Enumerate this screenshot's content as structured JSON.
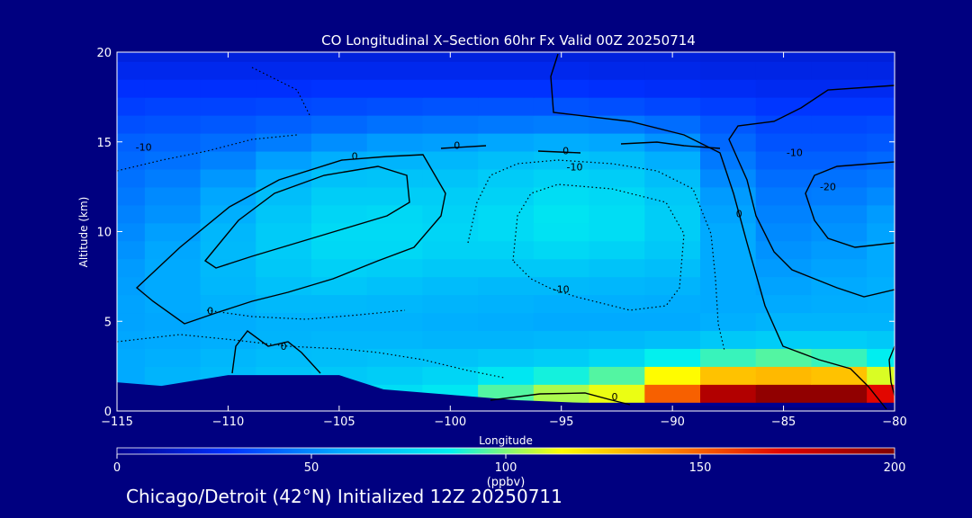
{
  "chart_data": {
    "type": "heatmap",
    "title": "CO Longitudinal X–Section 60hr  Fx Valid 00Z 20250714",
    "xlabel": "Longitude",
    "ylabel": "Altitude (km)",
    "xlim": [
      -115,
      -80
    ],
    "ylim": [
      0,
      20
    ],
    "x_ticks": [
      -115,
      -110,
      -105,
      -100,
      -95,
      -90,
      -85,
      -80
    ],
    "x_tick_labels": [
      "−115",
      "−110",
      "−105",
      "−100",
      "−95",
      "−90",
      "−85",
      "−80"
    ],
    "y_ticks": [
      0,
      5,
      10,
      15,
      20
    ],
    "y_tick_labels": [
      "0",
      "5",
      "10",
      "15",
      "20"
    ],
    "colorbar": {
      "min": 0,
      "max": 200,
      "units": "(ppbv)",
      "ticks": [
        0,
        50,
        100,
        150,
        200
      ],
      "tick_labels": [
        "0",
        "50",
        "100",
        "150",
        "200"
      ],
      "colors": [
        "#000090",
        "#0030ff",
        "#00a8ff",
        "#00f0f0",
        "#ffff00",
        "#ff8000",
        "#e00000",
        "#800000"
      ]
    },
    "lon": [
      -115,
      -112.5,
      -110,
      -107.5,
      -105,
      -102.5,
      -100,
      -97.5,
      -95,
      -92.5,
      -90,
      -87.5,
      -85,
      -82.5,
      -80
    ],
    "alt": [
      1,
      2,
      3,
      4,
      5,
      6,
      7,
      8,
      9,
      10,
      11,
      12,
      13,
      14,
      15,
      16,
      17,
      18,
      19,
      20
    ],
    "co_ppbv": [
      [
        40,
        60,
        68,
        72,
        76,
        78,
        82,
        95,
        105,
        112,
        150,
        185,
        195,
        195,
        170
      ],
      [
        58,
        62,
        65,
        68,
        70,
        72,
        75,
        82,
        88,
        95,
        115,
        128,
        130,
        128,
        110
      ],
      [
        58,
        60,
        63,
        65,
        66,
        67,
        68,
        70,
        72,
        76,
        86,
        92,
        95,
        92,
        85
      ],
      [
        57,
        58,
        60,
        62,
        63,
        63,
        62,
        62,
        63,
        64,
        66,
        70,
        72,
        72,
        70
      ],
      [
        56,
        57,
        59,
        61,
        61,
        61,
        60,
        59,
        58,
        58,
        58,
        60,
        62,
        62,
        62
      ],
      [
        56,
        58,
        61,
        64,
        64,
        63,
        62,
        61,
        60,
        60,
        59,
        58,
        58,
        59,
        60
      ],
      [
        55,
        58,
        63,
        67,
        69,
        67,
        65,
        64,
        64,
        63,
        62,
        58,
        56,
        58,
        60
      ],
      [
        54,
        58,
        64,
        70,
        73,
        72,
        70,
        70,
        70,
        68,
        66,
        58,
        54,
        56,
        58
      ],
      [
        52,
        57,
        64,
        71,
        76,
        76,
        74,
        74,
        76,
        74,
        70,
        58,
        52,
        54,
        58
      ],
      [
        50,
        55,
        63,
        71,
        77,
        77,
        75,
        77,
        80,
        78,
        72,
        58,
        50,
        52,
        56
      ],
      [
        48,
        52,
        60,
        69,
        75,
        76,
        74,
        77,
        81,
        78,
        72,
        56,
        48,
        50,
        54
      ],
      [
        46,
        50,
        57,
        66,
        72,
        72,
        72,
        74,
        78,
        76,
        70,
        54,
        46,
        47,
        50
      ],
      [
        44,
        47,
        53,
        61,
        67,
        68,
        68,
        71,
        74,
        72,
        66,
        50,
        43,
        44,
        46
      ],
      [
        42,
        44,
        48,
        55,
        60,
        62,
        63,
        66,
        68,
        66,
        60,
        46,
        40,
        40,
        42
      ],
      [
        40,
        41,
        43,
        47,
        51,
        54,
        55,
        57,
        59,
        57,
        52,
        42,
        37,
        37,
        38
      ],
      [
        36,
        37,
        38,
        40,
        42,
        44,
        45,
        46,
        47,
        46,
        43,
        38,
        34,
        34,
        35
      ],
      [
        32,
        33,
        33,
        34,
        35,
        36,
        37,
        37,
        37,
        36,
        34,
        32,
        30,
        30,
        30
      ],
      [
        28,
        28,
        28,
        28,
        29,
        29,
        29,
        29,
        29,
        28,
        27,
        26,
        25,
        25,
        25
      ],
      [
        24,
        24,
        24,
        24,
        24,
        24,
        24,
        24,
        24,
        23,
        23,
        22,
        22,
        22,
        22
      ],
      [
        20,
        20,
        20,
        20,
        20,
        20,
        20,
        20,
        20,
        20,
        20,
        19,
        19,
        19,
        19
      ]
    ],
    "terrain": {
      "lon": [
        -115,
        -113,
        -111,
        -110,
        -109,
        -107,
        -105,
        -104,
        -103,
        -100,
        -97,
        -95,
        -93,
        -91,
        -89,
        -87,
        -85,
        -83,
        -81,
        -80
      ],
      "alt": [
        1.6,
        1.4,
        1.8,
        2.0,
        2.0,
        2.0,
        2.0,
        1.6,
        1.2,
        0.9,
        0.6,
        0.5,
        0.4,
        0.3,
        0.3,
        0.25,
        0.2,
        0.2,
        0.2,
        0.2
      ]
    },
    "contour_labels": [
      {
        "text": "-10",
        "lon": -113.8,
        "alt": 14.5
      },
      {
        "text": "0",
        "lon": -104.3,
        "alt": 14.0
      },
      {
        "text": "0",
        "lon": -99.7,
        "alt": 14.6
      },
      {
        "text": "0",
        "lon": -94.8,
        "alt": 14.3
      },
      {
        "text": "-10",
        "lon": -94.4,
        "alt": 13.4
      },
      {
        "text": "-10",
        "lon": -84.5,
        "alt": 14.2
      },
      {
        "text": "-20",
        "lon": -83.0,
        "alt": 12.3
      },
      {
        "text": "0",
        "lon": -87.0,
        "alt": 10.8
      },
      {
        "text": "-10",
        "lon": -95.0,
        "alt": 6.6
      },
      {
        "text": "0",
        "lon": -110.8,
        "alt": 5.4
      },
      {
        "text": "0",
        "lon": -107.5,
        "alt": 3.4
      },
      {
        "text": "0",
        "lon": -92.6,
        "alt": 0.6
      }
    ]
  },
  "footer": "Chicago/Detroit (42°N) Initialized 12Z 20250711"
}
